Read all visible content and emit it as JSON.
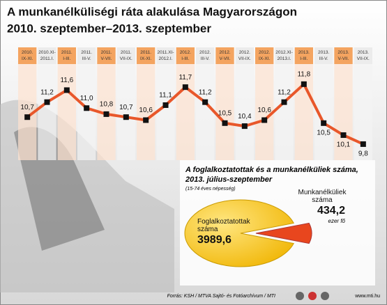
{
  "chart_data": [
    {
      "type": "line",
      "title": "A munkanélküliségi ráta alakulása Magyarországon",
      "subtitle": "2010. szeptember–2013. szeptember",
      "categories": [
        "2010.\nIX-XI.",
        "2010.XI-\n2011.I.",
        "2011.\nI-III.",
        "2011.\nIII-V.",
        "2011.\nV-VII.",
        "2011.\nVII-IX.",
        "2011.\nIX-XI.",
        "2011.XI-\n2012.I.",
        "2012.\nI-III.",
        "2012.\nIII-V.",
        "2012.\nV-VII.",
        "2012.\nVII-IX.",
        "2012.\nIX-XI.",
        "2012.XI-\n2013.I.",
        "2013.\nI-III.",
        "2013.\nIII-V.",
        "2013.\nV-VII.",
        "2013.\nVII-IX."
      ],
      "values": [
        10.7,
        11.2,
        11.6,
        11.0,
        10.8,
        10.7,
        10.6,
        11.1,
        11.7,
        11.2,
        10.5,
        10.4,
        10.6,
        11.2,
        11.8,
        10.5,
        10.1,
        9.8
      ],
      "value_labels": [
        "10,7",
        "11,2",
        "11,6",
        "11,0",
        "10,8",
        "10,7",
        "10,6",
        "11,1",
        "11,7",
        "11,2",
        "10,5",
        "10,4",
        "10,6",
        "11,2",
        "11,8",
        "10,5",
        "10,1",
        "9,8"
      ],
      "color": "#e8572a",
      "marker_color": "#111111",
      "ylim": [
        8.8,
        12.4
      ]
    },
    {
      "type": "pie",
      "title": "A foglalkoztatottak és a munkanélküliek száma,",
      "subtitle": "2013. július-szeptember",
      "note": "(15-74 éves népesség)",
      "categories": [
        "Foglalkoztatottak\nszáma",
        "Munkanélküliek\nszáma"
      ],
      "values": [
        3989.6,
        434.2
      ],
      "value_labels": [
        "3989,6",
        "434,2"
      ],
      "unit": "ezer fő",
      "colors": [
        "#f6c000",
        "#e8461e"
      ]
    }
  ],
  "footer": {
    "source": "Forrás: KSH / MTVA Sajtó- és Fotóarchívum / MTI",
    "website": "www.mti.hu"
  }
}
